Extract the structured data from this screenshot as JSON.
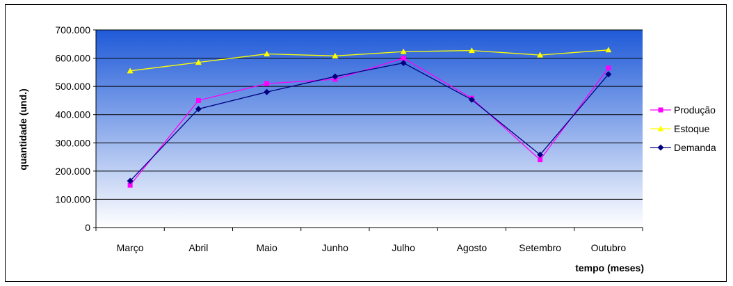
{
  "chart_data": {
    "type": "line",
    "title": "",
    "xlabel": "tempo (meses)",
    "ylabel": "quantidade (und.)",
    "categories": [
      "Março",
      "Abril",
      "Maio",
      "Junho",
      "Julho",
      "Agosto",
      "Setembro",
      "Outubro"
    ],
    "ylim": [
      0,
      700000
    ],
    "yticks": [
      {
        "value": 0,
        "label": "0"
      },
      {
        "value": 100000,
        "label": "100.000"
      },
      {
        "value": 200000,
        "label": "200.000"
      },
      {
        "value": 300000,
        "label": "300.000"
      },
      {
        "value": 400000,
        "label": "400.000"
      },
      {
        "value": 500000,
        "label": "500.000"
      },
      {
        "value": 600000,
        "label": "600.000"
      },
      {
        "value": 700000,
        "label": "700.000"
      }
    ],
    "grid": true,
    "legend_position": "right",
    "series": [
      {
        "name": "Produção",
        "color": "#ff00ff",
        "marker": "square",
        "values": [
          150000,
          450000,
          510000,
          525000,
          600000,
          458000,
          240000,
          565000
        ]
      },
      {
        "name": "Estoque",
        "color": "#ffff00",
        "marker": "triangle",
        "values": [
          555000,
          585000,
          615000,
          608000,
          623000,
          627000,
          611000,
          629000
        ]
      },
      {
        "name": "Demanda",
        "color": "#000080",
        "marker": "diamond",
        "values": [
          165000,
          420000,
          480000,
          535000,
          583000,
          453000,
          258000,
          543000
        ]
      }
    ],
    "plot_background": {
      "top_color": "#1f5ad8",
      "bottom_color": "#ffffff"
    }
  }
}
